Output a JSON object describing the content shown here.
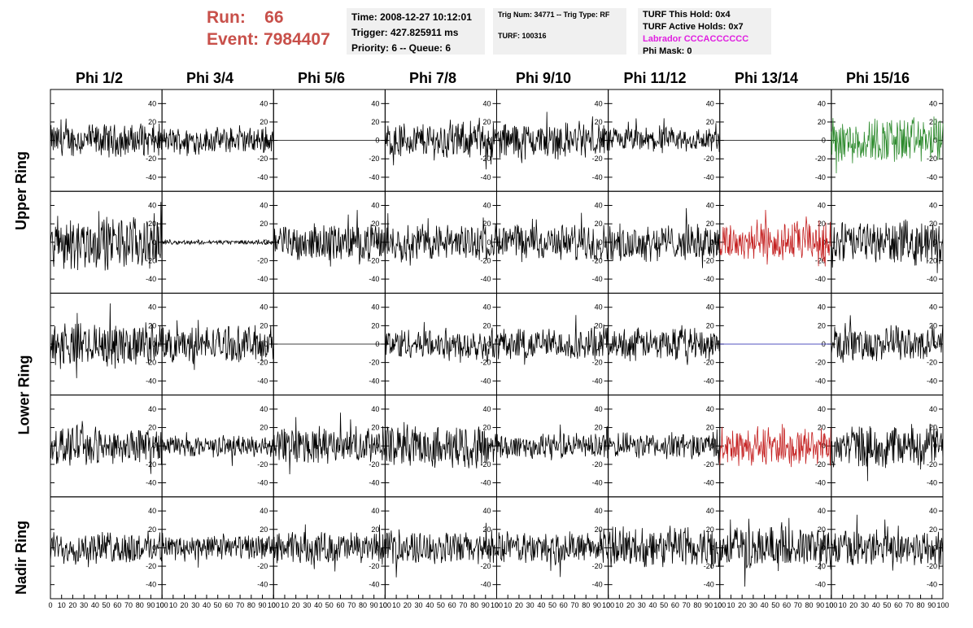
{
  "header": {
    "run_label": "Run:",
    "run_value": "66",
    "event_label": "Event:",
    "event_value": "7984407",
    "time": "Time: 2008-12-27 10:12:01",
    "trigger": "Trigger: 427.825911 ms",
    "priority_queue": "Priority: 6 -- Queue: 6",
    "trig_num": "Trig Num: 34771 -- Trig Type: RF",
    "turf": "TURF: 100316",
    "turf_this_hold": "TURF This Hold: 0x4",
    "turf_active_holds": "TURF Active Holds: 0x7",
    "labrador": "Labrador CCCACCCCCC",
    "phi_mask": "Phi Mask: 0"
  },
  "colors": {
    "header_red": "#c8504a",
    "labrador_magenta": "#e020e0",
    "trace_default": "#000000",
    "trace_green": "#2e8b2e",
    "trace_red": "#c42020",
    "trace_blue": "#1a1aaa",
    "box_bg": "#f0f0f0"
  },
  "chart_data": {
    "type": "line",
    "columns": [
      "Phi 1/2",
      "Phi 3/4",
      "Phi 5/6",
      "Phi 7/8",
      "Phi 9/10",
      "Phi 11/12",
      "Phi 13/14",
      "Phi 15/16"
    ],
    "rows": [
      "Upper Ring",
      "Lower Ring",
      "Nadir Ring"
    ],
    "y_ticks": [
      -40,
      -20,
      0,
      20,
      40
    ],
    "ylim": [
      -50,
      50
    ],
    "x_ticks": [
      0,
      10,
      20,
      30,
      40,
      50,
      60,
      70,
      80,
      90,
      100
    ],
    "xlim": [
      0,
      100
    ],
    "panel_rows": [
      {
        "panels": [
          {
            "amp": 15,
            "color": "#000000"
          },
          {
            "amp": 12,
            "color": "#000000"
          },
          {
            "amp": 0,
            "color": "#000000"
          },
          {
            "amp": 17,
            "color": "#000000"
          },
          {
            "amp": 17,
            "color": "#000000"
          },
          {
            "amp": 12,
            "color": "#000000"
          },
          {
            "amp": 0,
            "color": "#000000"
          },
          {
            "amp": 22,
            "color": "#2e8b2e"
          }
        ]
      },
      {
        "panels": [
          {
            "amp": 25,
            "color": "#000000"
          },
          {
            "amp": 2,
            "color": "#000000"
          },
          {
            "amp": 17,
            "color": "#000000"
          },
          {
            "amp": 17,
            "color": "#000000"
          },
          {
            "amp": 17,
            "color": "#000000"
          },
          {
            "amp": 17,
            "color": "#000000"
          },
          {
            "amp": 20,
            "color": "#c42020"
          },
          {
            "amp": 20,
            "color": "#000000"
          }
        ]
      },
      {
        "panels": [
          {
            "amp": 20,
            "color": "#000000"
          },
          {
            "amp": 17,
            "color": "#000000"
          },
          {
            "amp": 0,
            "color": "#000000"
          },
          {
            "amp": 15,
            "color": "#000000"
          },
          {
            "amp": 15,
            "color": "#000000"
          },
          {
            "amp": 15,
            "color": "#000000"
          },
          {
            "amp": 0,
            "color": "#1a1aaa"
          },
          {
            "amp": 17,
            "color": "#000000"
          }
        ]
      },
      {
        "panels": [
          {
            "amp": 17,
            "color": "#000000"
          },
          {
            "amp": 10,
            "color": "#000000"
          },
          {
            "amp": 17,
            "color": "#000000"
          },
          {
            "amp": 20,
            "color": "#000000"
          },
          {
            "amp": 12,
            "color": "#000000"
          },
          {
            "amp": 12,
            "color": "#000000"
          },
          {
            "amp": 18,
            "color": "#c42020"
          },
          {
            "amp": 20,
            "color": "#000000"
          }
        ]
      },
      {
        "panels": [
          {
            "amp": 15,
            "color": "#000000"
          },
          {
            "amp": 12,
            "color": "#000000"
          },
          {
            "amp": 15,
            "color": "#000000"
          },
          {
            "amp": 15,
            "color": "#000000"
          },
          {
            "amp": 15,
            "color": "#000000"
          },
          {
            "amp": 20,
            "color": "#000000"
          },
          {
            "amp": 20,
            "color": "#000000"
          },
          {
            "amp": 17,
            "color": "#000000"
          }
        ]
      }
    ]
  }
}
